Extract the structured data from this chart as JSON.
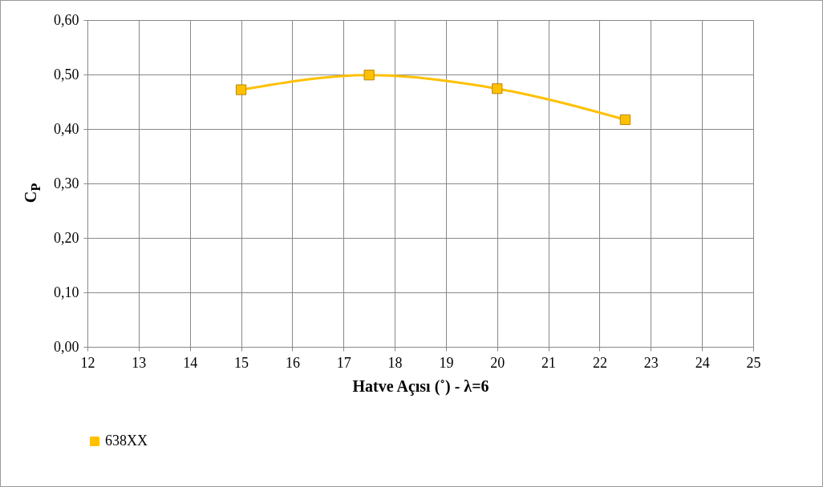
{
  "chart_data": {
    "type": "line",
    "xlabel": "Hatve Açısı (˚) - λ=6",
    "ylabel": "C$_{P}$",
    "x": [
      15,
      17.5,
      20,
      22.5
    ],
    "series": [
      {
        "name": "638XX",
        "color": "#ffc000",
        "values": [
          0.472,
          0.499,
          0.474,
          0.417
        ]
      }
    ],
    "xlim": [
      12,
      25
    ],
    "xticks": [
      12,
      13,
      14,
      15,
      16,
      17,
      18,
      19,
      20,
      21,
      22,
      23,
      24,
      25
    ],
    "ylim": [
      0,
      0.6
    ],
    "yticks": [
      {
        "value": 0,
        "label": "0,00"
      },
      {
        "value": 0.1,
        "label": "0,10"
      },
      {
        "value": 0.2,
        "label": "0,20"
      },
      {
        "value": 0.3,
        "label": "0,30"
      },
      {
        "value": 0.4,
        "label": "0,40"
      },
      {
        "value": 0.5,
        "label": "0,50"
      },
      {
        "value": 0.6,
        "label": "0,60"
      }
    ],
    "grid": true,
    "legend": "bottom",
    "marker": "square",
    "line_style": "solid"
  }
}
